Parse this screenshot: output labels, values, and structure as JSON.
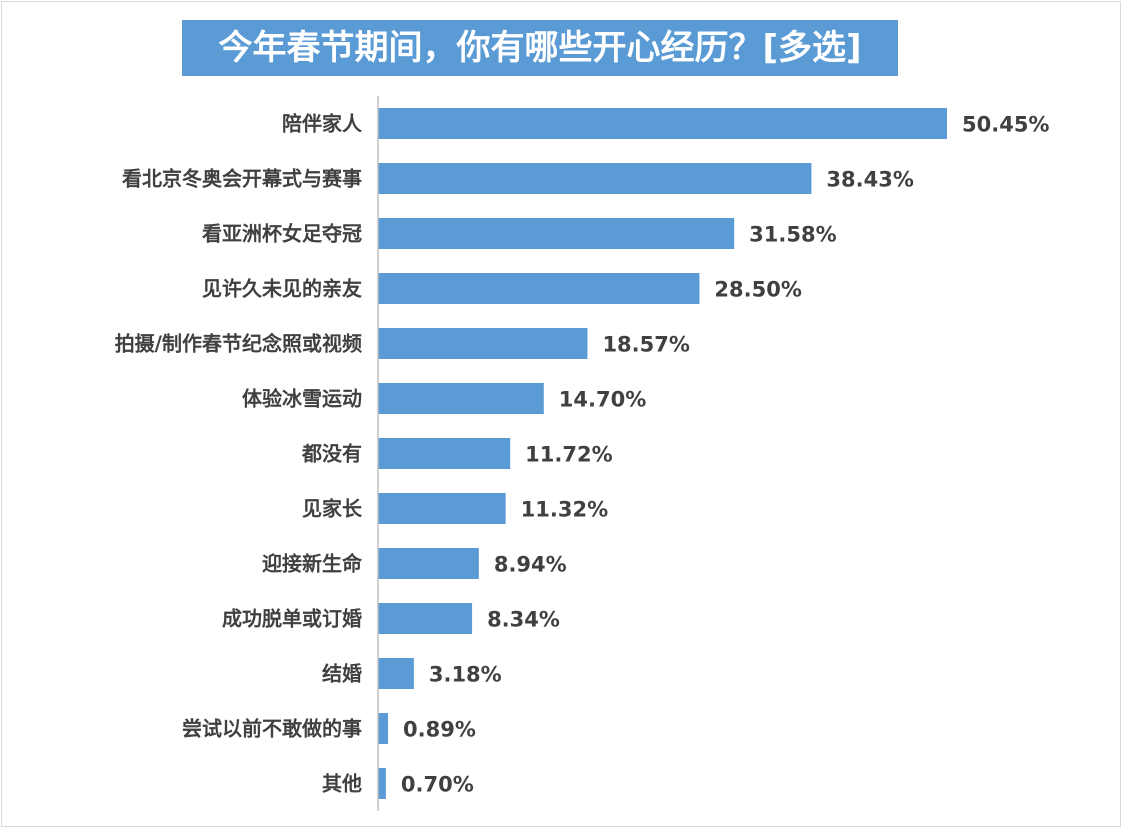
{
  "chart_data": {
    "type": "bar",
    "orientation": "horizontal",
    "title": "今年春节期间，你有哪些开心经历？[多选]",
    "categories": [
      "陪伴家人",
      "看北京冬奥会开幕式与赛事",
      "看亚洲杯女足夺冠",
      "见许久未见的亲友",
      "拍摄/制作春节纪念照或视频",
      "体验冰雪运动",
      "都没有",
      "见家长",
      "迎接新生命",
      "成功脱单或订婚",
      "结婚",
      "尝试以前不敢做的事",
      "其他"
    ],
    "values": [
      50.45,
      38.43,
      31.58,
      28.5,
      18.57,
      14.7,
      11.72,
      11.32,
      8.94,
      8.34,
      3.18,
      0.89,
      0.7
    ],
    "value_labels": [
      "50.45%",
      "38.43%",
      "31.58%",
      "28.50%",
      "18.57%",
      "14.70%",
      "11.72%",
      "11.32%",
      "8.94%",
      "8.34%",
      "3.18%",
      "0.89%",
      "0.70%"
    ],
    "unit": "%",
    "xlim": [
      0,
      50.45
    ],
    "grid": false,
    "legend": "none",
    "bar_color": "#5b9bd5"
  }
}
